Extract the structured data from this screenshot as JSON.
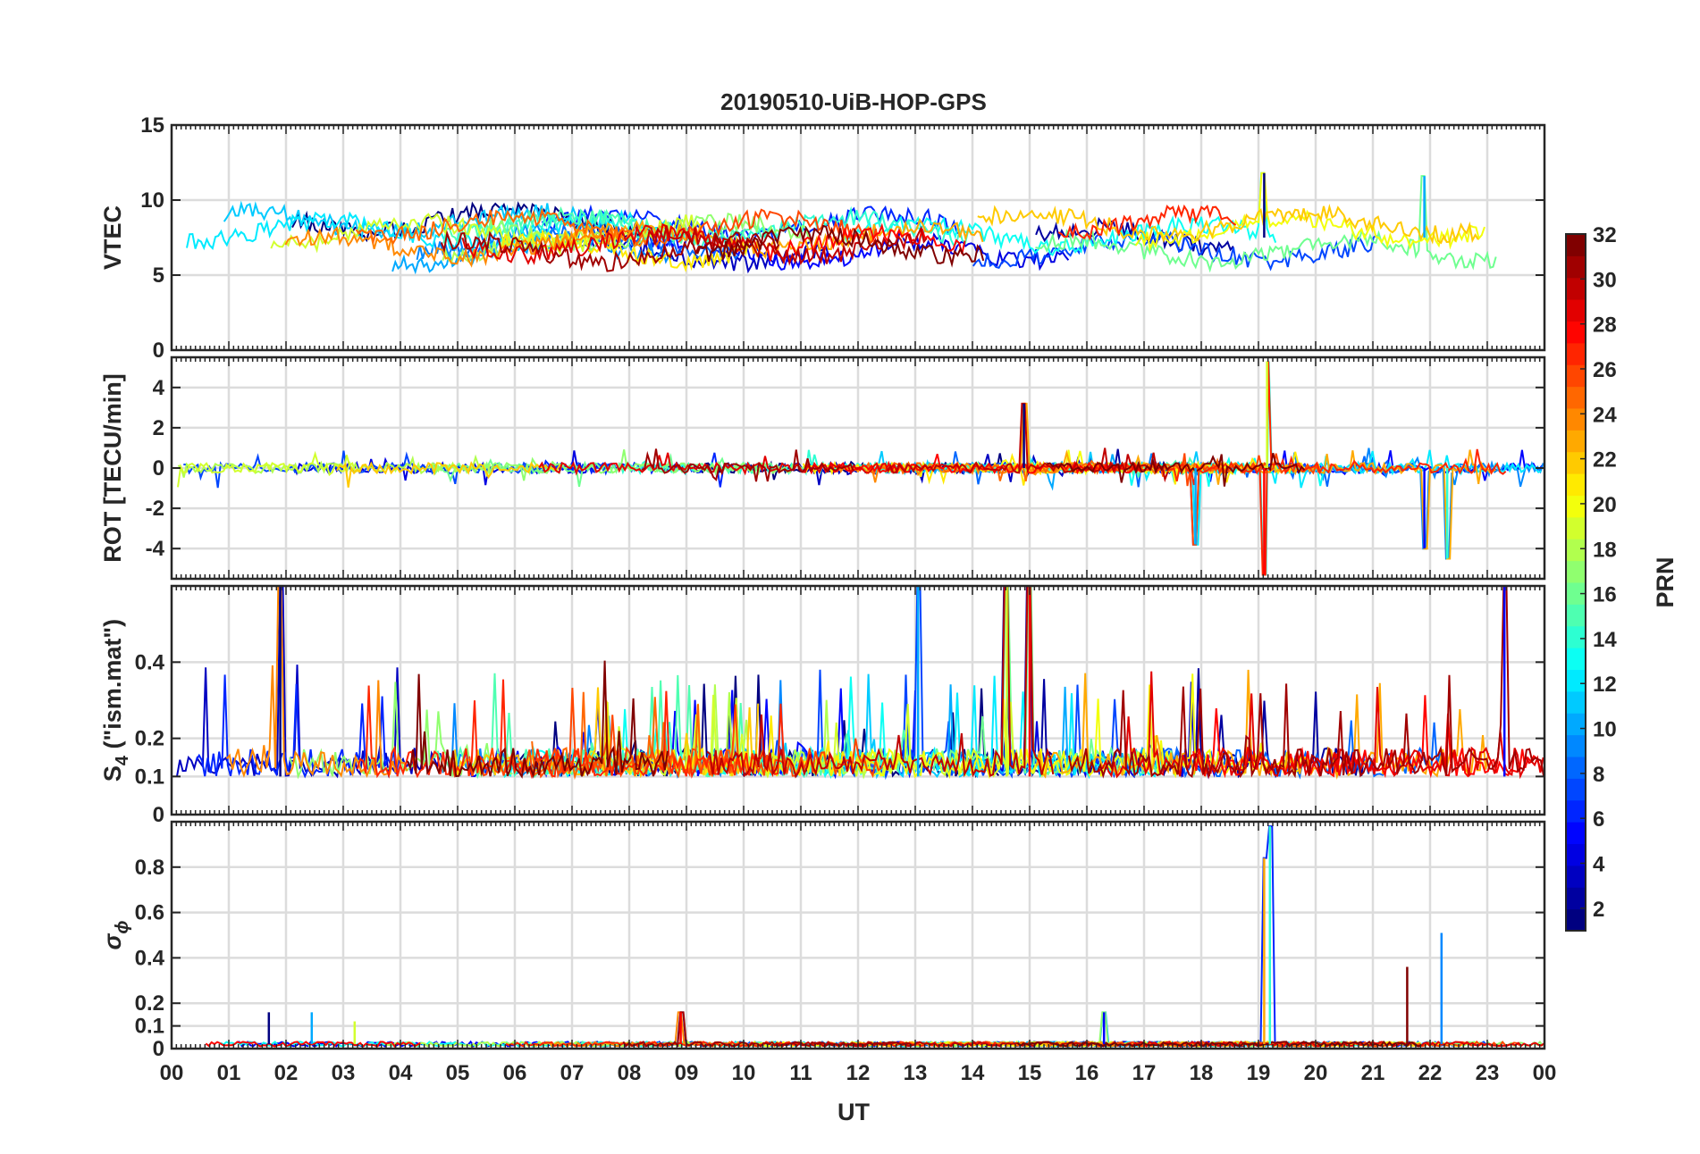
{
  "chart_data": {
    "type": "line",
    "title": "20190510-UiB-HOP-GPS",
    "xlabel": "UT",
    "x_ticks": [
      "00",
      "01",
      "02",
      "03",
      "04",
      "05",
      "06",
      "07",
      "08",
      "09",
      "10",
      "11",
      "12",
      "13",
      "14",
      "15",
      "16",
      "17",
      "18",
      "19",
      "20",
      "21",
      "22",
      "23",
      "00"
    ],
    "xlim_hours": [
      0,
      24
    ],
    "grid": true,
    "panels": [
      {
        "id": "vtec",
        "ylabel": "VTEC",
        "ylim": [
          0,
          15
        ],
        "y_ticks": [
          {
            "value": 0,
            "label": "0"
          },
          {
            "value": 5,
            "label": "5"
          },
          {
            "value": 10,
            "label": "10"
          },
          {
            "value": 15,
            "label": "15"
          }
        ],
        "baseline": 7.5,
        "amplitude": 1.2,
        "spikes": [
          {
            "x": 19.1,
            "peak": 11.8
          },
          {
            "x": 21.9,
            "peak": 11.6
          }
        ]
      },
      {
        "id": "rot",
        "ylabel": "ROT [TECU/min]",
        "ylim": [
          -5.5,
          5.5
        ],
        "y_ticks": [
          {
            "value": -4,
            "label": "-4"
          },
          {
            "value": -2,
            "label": "-2"
          },
          {
            "value": 0,
            "label": "0"
          },
          {
            "value": 2,
            "label": "2"
          },
          {
            "value": 4,
            "label": "4"
          }
        ],
        "baseline": 0,
        "amplitude": 0.25,
        "spikes": [
          {
            "x": 14.9,
            "peak": 3.2
          },
          {
            "x": 17.9,
            "peak": -3.8
          },
          {
            "x": 19.15,
            "peak": 5.3
          },
          {
            "x": 19.1,
            "peak": -5.3
          },
          {
            "x": 21.9,
            "peak": -4.0
          },
          {
            "x": 22.3,
            "peak": -4.5
          }
        ]
      },
      {
        "id": "s4",
        "ylabel_main": "S",
        "ylabel_sub": "4",
        "ylabel_rest": " (\"ism.mat\")",
        "ylim": [
          0,
          0.6
        ],
        "y_ticks": [
          {
            "value": 0,
            "label": "0"
          },
          {
            "value": 0.1,
            "label": "0.1"
          },
          {
            "value": 0.2,
            "label": "0.2"
          },
          {
            "value": 0.4,
            "label": "0.4"
          }
        ],
        "baseline": 0.1,
        "amplitude": 0.05,
        "spikes": [
          {
            "x": 1.9,
            "peak": 0.6
          },
          {
            "x": 13.05,
            "peak": 0.6
          },
          {
            "x": 14.6,
            "peak": 0.6
          },
          {
            "x": 15.0,
            "peak": 0.6
          },
          {
            "x": 23.3,
            "peak": 0.6
          }
        ]
      },
      {
        "id": "sigphi",
        "ylabel_main": "σ",
        "ylabel_sub": "ϕ",
        "ylim": [
          0,
          1.0
        ],
        "y_ticks": [
          {
            "value": 0,
            "label": "0"
          },
          {
            "value": 0.1,
            "label": "0.1"
          },
          {
            "value": 0.2,
            "label": "0.2"
          },
          {
            "value": 0.4,
            "label": "0.4"
          },
          {
            "value": 0.6,
            "label": "0.6"
          },
          {
            "value": 0.8,
            "label": "0.8"
          }
        ],
        "baseline": 0.02,
        "amplitude": 0.01,
        "spikes": [
          {
            "x": 1.7,
            "peak": 0.16
          },
          {
            "x": 2.45,
            "peak": 0.16
          },
          {
            "x": 3.2,
            "peak": 0.12
          },
          {
            "x": 8.9,
            "peak": 0.16
          },
          {
            "x": 16.3,
            "peak": 0.16
          },
          {
            "x": 19.2,
            "peak": 0.98
          },
          {
            "x": 19.1,
            "peak": 0.84
          },
          {
            "x": 21.6,
            "peak": 0.36
          },
          {
            "x": 22.2,
            "peak": 0.51
          }
        ]
      }
    ],
    "colorbar": {
      "label": "PRN",
      "colormap": "jet",
      "range": [
        1,
        32
      ],
      "ticks": [
        "2",
        "4",
        "6",
        "8",
        "10",
        "12",
        "14",
        "16",
        "18",
        "20",
        "22",
        "24",
        "26",
        "28",
        "30",
        "32"
      ]
    },
    "series_count": 32
  }
}
